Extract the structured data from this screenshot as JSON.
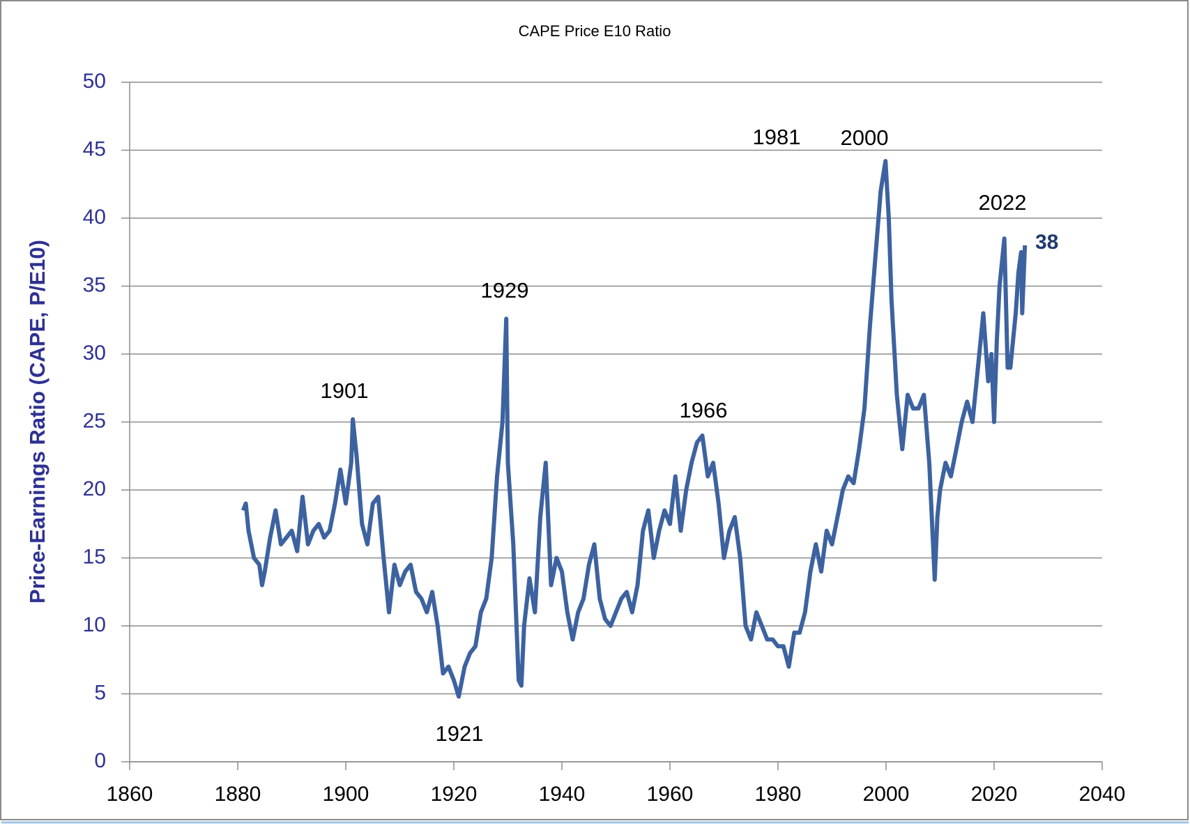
{
  "chart_data": {
    "type": "line",
    "title": "CAPE Price E10 Ratio",
    "y_label": "Price-Earnings Ratio (CAPE, P/E10)",
    "xlim": [
      1860,
      2040
    ],
    "xticks": [
      1860,
      1880,
      1900,
      1920,
      1940,
      1960,
      1980,
      2000,
      2020,
      2040
    ],
    "ylim": [
      0,
      50
    ],
    "yticks": [
      0,
      5,
      10,
      15,
      20,
      25,
      30,
      35,
      40,
      45,
      50
    ],
    "grid": true,
    "annotations": [
      "1901",
      "1921",
      "1929",
      "1966",
      "1981",
      "2000",
      "2022"
    ],
    "end_label": 38,
    "series": [
      {
        "color": "#3d62a0",
        "x": [
          1881,
          1881.5,
          1882,
          1883,
          1884,
          1884.5,
          1885,
          1886,
          1887,
          1888,
          1889,
          1890,
          1891,
          1892,
          1893,
          1894,
          1895,
          1896,
          1897,
          1898,
          1899,
          1900,
          1901,
          1901.3,
          1902,
          1903,
          1904,
          1905,
          1906,
          1907,
          1908,
          1909,
          1910,
          1911,
          1912,
          1913,
          1914,
          1915,
          1916,
          1917,
          1918,
          1919,
          1920,
          1920.9,
          1922,
          1923,
          1924,
          1925,
          1926,
          1927,
          1928,
          1929,
          1929.7,
          1930,
          1931,
          1932,
          1932.5,
          1933,
          1934,
          1935,
          1936,
          1937,
          1938,
          1939,
          1940,
          1941,
          1942,
          1943,
          1944,
          1945,
          1946,
          1947,
          1948,
          1949,
          1950,
          1951,
          1952,
          1953,
          1954,
          1955,
          1956,
          1957,
          1958,
          1959,
          1960,
          1961,
          1962,
          1963,
          1964,
          1965,
          1966,
          1967,
          1968,
          1969,
          1970,
          1971,
          1972,
          1973,
          1974,
          1975,
          1976,
          1977,
          1978,
          1979,
          1980,
          1981,
          1982,
          1983,
          1984,
          1985,
          1986,
          1987,
          1988,
          1989,
          1990,
          1991,
          1992,
          1993,
          1994,
          1995,
          1996,
          1997,
          1998,
          1999,
          1999.9,
          2000.5,
          2001,
          2002,
          2003,
          2004,
          2005,
          2006,
          2007,
          2008,
          2009,
          2009.5,
          2010,
          2011,
          2012,
          2013,
          2014,
          2015,
          2016,
          2017,
          2018,
          2018.9,
          2019.5,
          2020,
          2020.5,
          2021,
          2021.9,
          2022.5,
          2023,
          2024,
          2024.5,
          2025,
          2025.2,
          2025.7
        ],
        "values": [
          18.5,
          19,
          17,
          15,
          14.5,
          13,
          14,
          16.5,
          18.5,
          16,
          16.5,
          17,
          15.5,
          19.5,
          16,
          17,
          17.5,
          16.5,
          17,
          19,
          21.5,
          19,
          22,
          25.2,
          22.5,
          17.5,
          16,
          19,
          19.5,
          15,
          11,
          14.5,
          13,
          14,
          14.5,
          12.5,
          12,
          11,
          12.5,
          10,
          6.5,
          7,
          6,
          4.8,
          7,
          8,
          8.5,
          11,
          12,
          15,
          21,
          25,
          32.6,
          22,
          16,
          6,
          5.6,
          10,
          13.5,
          11,
          18,
          22,
          13,
          15,
          14,
          11,
          9,
          11,
          12,
          14.5,
          16,
          12,
          10.5,
          10,
          11,
          12,
          12.5,
          11,
          13,
          17,
          18.5,
          15,
          17,
          18.5,
          17.5,
          21,
          17,
          20,
          22,
          23.5,
          24,
          21,
          22,
          19,
          15,
          17,
          18,
          15,
          10,
          9,
          11,
          10,
          9,
          9,
          8.5,
          8.5,
          7,
          9.5,
          9.5,
          11,
          14,
          16,
          14,
          17,
          16,
          18,
          20,
          21,
          20.5,
          23,
          26,
          32,
          37,
          42,
          44.2,
          40,
          34,
          27,
          23,
          27,
          26,
          26,
          27,
          22,
          13.4,
          18,
          20,
          22,
          21,
          23,
          25,
          26.5,
          25,
          29,
          33,
          28,
          30,
          25,
          31,
          35,
          38.5,
          29,
          29,
          33,
          36,
          37.5,
          33,
          38
        ]
      }
    ]
  }
}
